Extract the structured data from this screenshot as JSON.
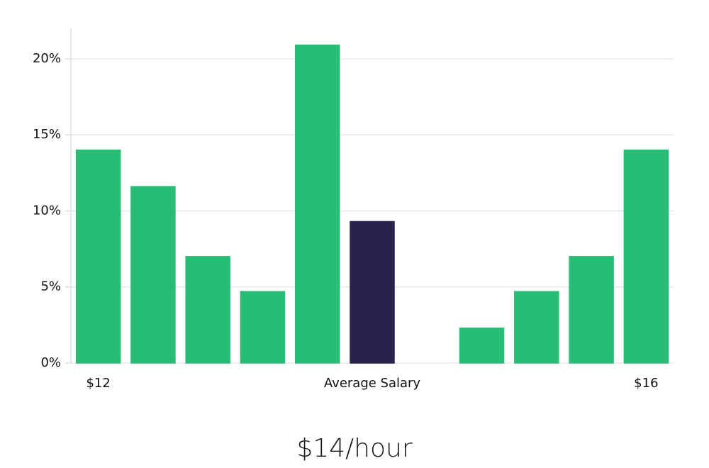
{
  "chart_data": {
    "type": "bar",
    "annotation": "$14/hour",
    "categories": [
      "$12",
      null,
      null,
      null,
      null,
      "Average Salary",
      null,
      null,
      null,
      null,
      "$16"
    ],
    "values": [
      14,
      11.6,
      7,
      4.7,
      20.9,
      9.3,
      0,
      2.3,
      4.7,
      7,
      14
    ],
    "colors": [
      "#28bd74",
      "#28bd74",
      "#28bd74",
      "#28bd74",
      "#28bd74",
      "#28234a",
      "#28bd74",
      "#28bd74",
      "#28bd74",
      "#28bd74",
      "#28bd74"
    ],
    "ylim": [
      0,
      22
    ],
    "yticks": [
      {
        "value": 0,
        "label": "0%"
      },
      {
        "value": 5,
        "label": "5%"
      },
      {
        "value": 10,
        "label": "10%"
      },
      {
        "value": 15,
        "label": "15%"
      },
      {
        "value": 20,
        "label": "20%"
      }
    ],
    "grid": true
  }
}
